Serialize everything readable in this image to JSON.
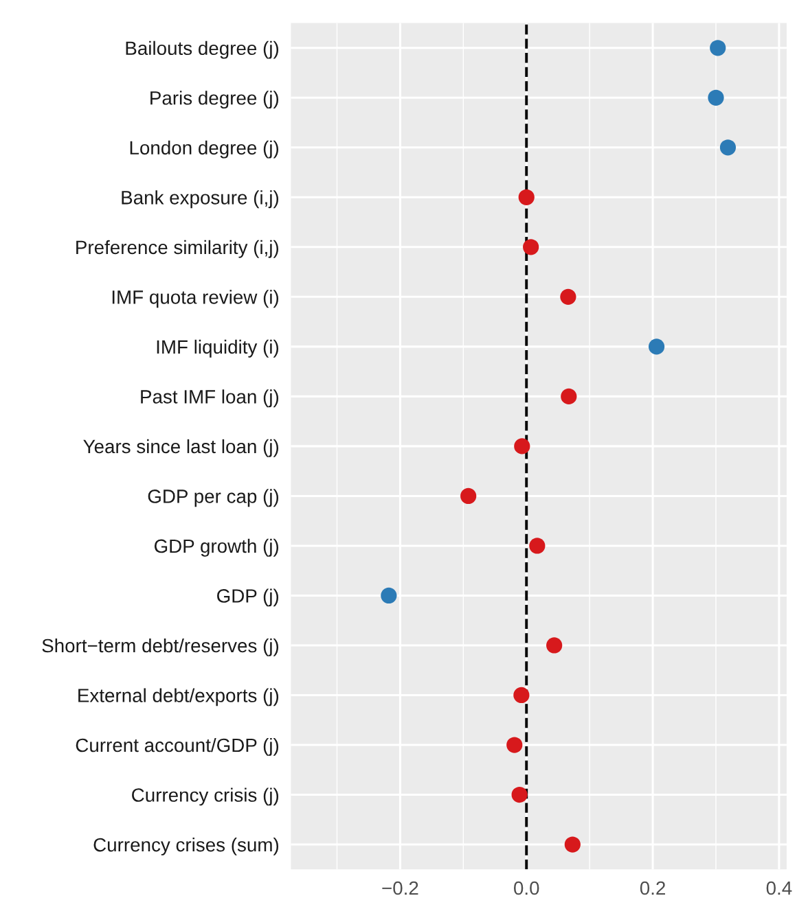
{
  "chart_data": {
    "type": "scatter",
    "orientation": "horizontal",
    "categories": [
      "Bailouts degree (j)",
      "Paris degree (j)",
      "London degree (j)",
      "Bank exposure (i,j)",
      "Preference similarity (i,j)",
      "IMF quota review (i)",
      "IMF liquidity (i)",
      "Past IMF loan (j)",
      "Years since last loan (j)",
      "GDP per cap (j)",
      "GDP growth (j)",
      "GDP (j)",
      "Short−term debt/reserves (j)",
      "External debt/exports (j)",
      "Current account/GDP (j)",
      "Currency crisis (j)",
      "Currency crises (sum)"
    ],
    "values": [
      0.303,
      0.3,
      0.319,
      0.0,
      0.007,
      0.066,
      0.206,
      0.067,
      -0.007,
      -0.092,
      0.017,
      -0.218,
      0.044,
      -0.008,
      -0.019,
      -0.011,
      0.073
    ],
    "colors": [
      "#2c7bb6",
      "#2c7bb6",
      "#2c7bb6",
      "#d7191c",
      "#d7191c",
      "#d7191c",
      "#2c7bb6",
      "#d7191c",
      "#d7191c",
      "#d7191c",
      "#d7191c",
      "#2c7bb6",
      "#d7191c",
      "#d7191c",
      "#d7191c",
      "#d7191c",
      "#d7191c"
    ],
    "xlim": [
      -0.373,
      0.412
    ],
    "xticks": [
      {
        "value": -0.2,
        "label": "−0.2"
      },
      {
        "value": 0,
        "label": "0.0"
      },
      0.2,
      0.4
    ],
    "ref_lines": [
      {
        "axis": "x",
        "value": 0,
        "color": "#000000",
        "line_style": "dashed"
      }
    ],
    "marker": "circle",
    "grid": true
  }
}
